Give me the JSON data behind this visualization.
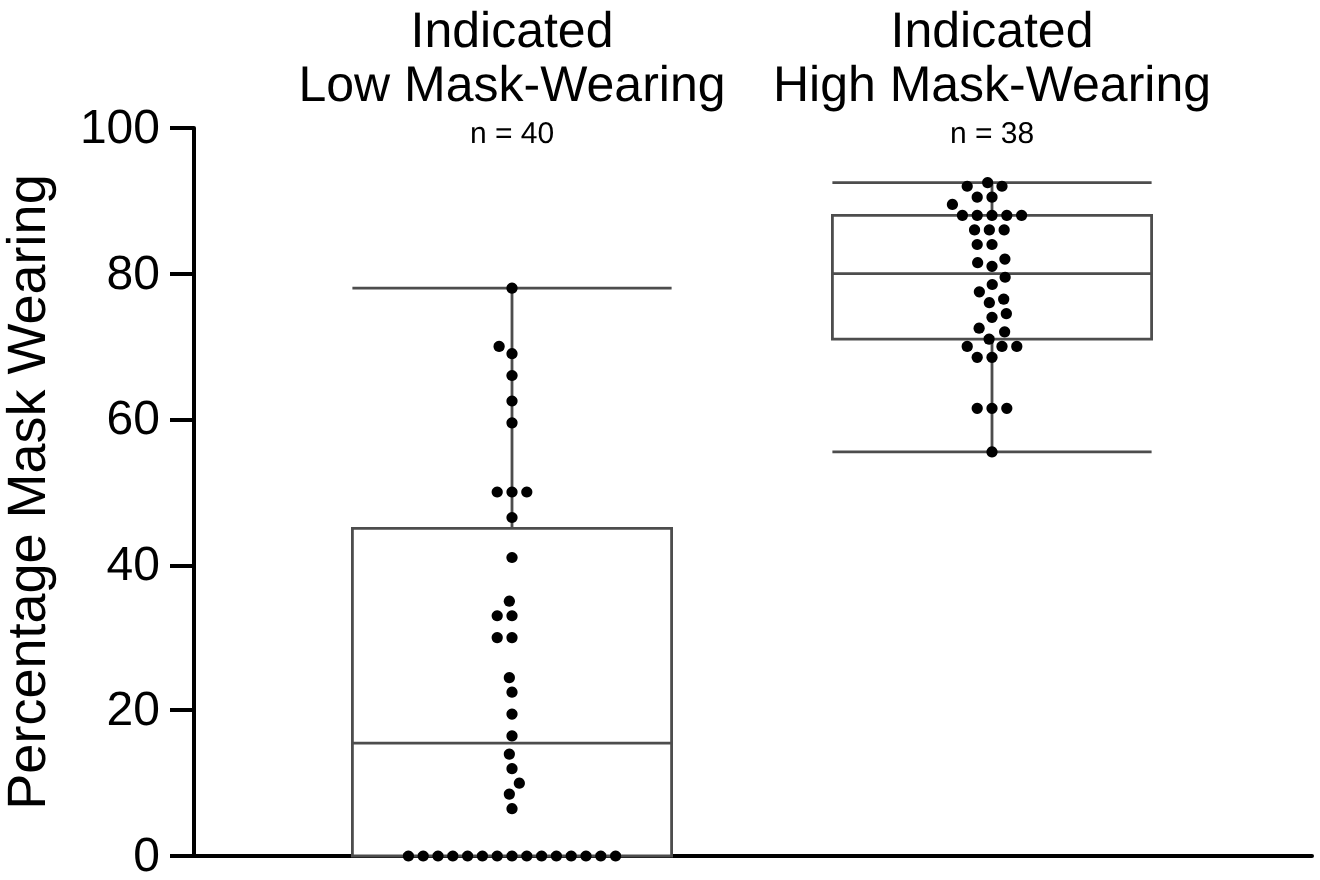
{
  "chart_data": {
    "type": "box",
    "categories": [
      "Indicated\nLow Mask-Wearing",
      "Indicated\nHigh Mask-Wearing"
    ],
    "ylabel": "Percentage Mask Wearing",
    "ylim": [
      0,
      100
    ],
    "yticks": [
      0,
      20,
      40,
      60,
      80,
      100
    ],
    "marker": "circle",
    "annotations": [
      "n = 40",
      "n = 38"
    ],
    "series": [
      {
        "color": "#4d4d4d",
        "boxes": [
          {
            "low": 0,
            "q1": 0,
            "median": 15.5,
            "q3": 45,
            "high": 78
          },
          {
            "low": 55.5,
            "q1": 71,
            "median": 80,
            "q3": 88,
            "high": 92.5
          }
        ]
      },
      {
        "type": "scatter",
        "color": "#000000",
        "x": [
          "Indicated\nLow Mask-Wearing",
          "Indicated\nLow Mask-Wearing",
          "Indicated\nLow Mask-Wearing",
          "Indicated\nLow Mask-Wearing",
          "Indicated\nLow Mask-Wearing",
          "Indicated\nLow Mask-Wearing",
          "Indicated\nLow Mask-Wearing",
          "Indicated\nLow Mask-Wearing",
          "Indicated\nLow Mask-Wearing",
          "Indicated\nLow Mask-Wearing",
          "Indicated\nLow Mask-Wearing",
          "Indicated\nLow Mask-Wearing",
          "Indicated\nLow Mask-Wearing",
          "Indicated\nLow Mask-Wearing",
          "Indicated\nLow Mask-Wearing",
          "Indicated\nLow Mask-Wearing",
          "Indicated\nLow Mask-Wearing",
          "Indicated\nLow Mask-Wearing",
          "Indicated\nLow Mask-Wearing",
          "Indicated\nLow Mask-Wearing",
          "Indicated\nLow Mask-Wearing",
          "Indicated\nLow Mask-Wearing",
          "Indicated\nLow Mask-Wearing",
          "Indicated\nLow Mask-Wearing",
          "Indicated\nLow Mask-Wearing",
          "Indicated\nLow Mask-Wearing",
          "Indicated\nLow Mask-Wearing",
          "Indicated\nLow Mask-Wearing",
          "Indicated\nLow Mask-Wearing",
          "Indicated\nLow Mask-Wearing",
          "Indicated\nLow Mask-Wearing",
          "Indicated\nLow Mask-Wearing",
          "Indicated\nLow Mask-Wearing",
          "Indicated\nLow Mask-Wearing",
          "Indicated\nLow Mask-Wearing",
          "Indicated\nLow Mask-Wearing",
          "Indicated\nLow Mask-Wearing",
          "Indicated\nLow Mask-Wearing",
          "Indicated\nLow Mask-Wearing",
          "Indicated\nLow Mask-Wearing",
          "Indicated\nHigh Mask-Wearing",
          "Indicated\nHigh Mask-Wearing",
          "Indicated\nHigh Mask-Wearing",
          "Indicated\nHigh Mask-Wearing",
          "Indicated\nHigh Mask-Wearing",
          "Indicated\nHigh Mask-Wearing",
          "Indicated\nHigh Mask-Wearing",
          "Indicated\nHigh Mask-Wearing",
          "Indicated\nHigh Mask-Wearing",
          "Indicated\nHigh Mask-Wearing",
          "Indicated\nHigh Mask-Wearing",
          "Indicated\nHigh Mask-Wearing",
          "Indicated\nHigh Mask-Wearing",
          "Indicated\nHigh Mask-Wearing",
          "Indicated\nHigh Mask-Wearing",
          "Indicated\nHigh Mask-Wearing",
          "Indicated\nHigh Mask-Wearing",
          "Indicated\nHigh Mask-Wearing",
          "Indicated\nHigh Mask-Wearing",
          "Indicated\nHigh Mask-Wearing",
          "Indicated\nHigh Mask-Wearing",
          "Indicated\nHigh Mask-Wearing",
          "Indicated\nHigh Mask-Wearing",
          "Indicated\nHigh Mask-Wearing",
          "Indicated\nHigh Mask-Wearing",
          "Indicated\nHigh Mask-Wearing",
          "Indicated\nHigh Mask-Wearing",
          "Indicated\nHigh Mask-Wearing",
          "Indicated\nHigh Mask-Wearing",
          "Indicated\nHigh Mask-Wearing",
          "Indicated\nHigh Mask-Wearing",
          "Indicated\nHigh Mask-Wearing",
          "Indicated\nHigh Mask-Wearing",
          "Indicated\nHigh Mask-Wearing",
          "Indicated\nHigh Mask-Wearing",
          "Indicated\nHigh Mask-Wearing",
          "Indicated\nHigh Mask-Wearing",
          "Indicated\nHigh Mask-Wearing"
        ],
        "values": [
          0,
          0,
          0,
          0,
          0,
          0,
          0,
          0,
          0,
          0,
          0,
          0,
          0,
          0,
          0,
          6.5,
          8.5,
          10,
          12,
          14,
          16.5,
          19.5,
          22.5,
          24.5,
          30,
          30,
          33,
          33,
          35,
          41,
          46.5,
          50,
          50,
          50,
          59.5,
          62.5,
          66,
          69,
          70,
          78,
          92.5,
          92,
          92,
          90.5,
          90.5,
          89.5,
          88,
          88,
          88,
          88,
          88,
          86,
          86,
          86,
          84,
          84,
          82,
          81.5,
          81,
          79.5,
          78.5,
          77.5,
          76.5,
          76,
          74.5,
          74,
          72.5,
          72,
          71,
          70,
          70,
          70,
          68.5,
          68.5,
          61.5,
          61.5,
          61.5,
          55.5
        ]
      }
    ]
  }
}
